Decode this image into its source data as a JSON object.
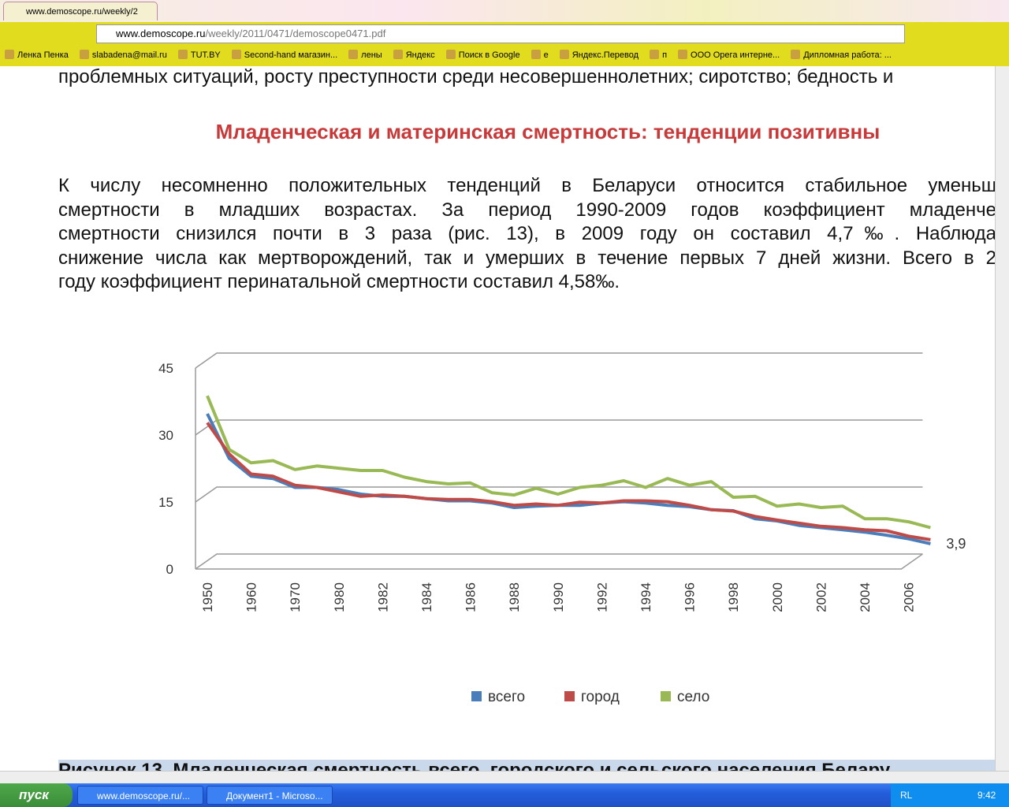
{
  "browser": {
    "tab_title": "www.demoscope.ru/weekly/2",
    "address_host": "www.demoscope.ru",
    "address_path": "/weekly/2011/0471/demoscope0471.pdf",
    "bookmarks": [
      "Ленка Пенка",
      "slabadena@mail.ru",
      "TUT.BY",
      "Second-hand магазин...",
      "лены",
      "Яндекс",
      "Поиск в Google",
      "е",
      "Яндекс.Перевод",
      "п",
      "ООО Орега интерне...",
      "Дипломная работа: ..."
    ]
  },
  "document": {
    "top_line": "проблемных ситуаций, росту преступности среди несовершеннолетних; сиротство; бедность и",
    "heading": "Младенческая и материнская смертность: тенденции позитивны",
    "paragraph": [
      "К числу несомненно положительных тенденций в Беларуси относится стабильное уменьш",
      "смертности в младших возрастах. За период 1990-2009 годов коэффициент младенче",
      "смертности снизился почти в 3 раза (рис. 13), в 2009 году он составил 4,7‰. Наблюда",
      "снижение числа как мертворождений, так и умерших в течение первых 7 дней жизни. Всего в 2",
      "году коэффициент перинатальной смертности составил 4,58‰."
    ],
    "caption": "Рисунок 13. Младенческая смертность всего, городского и сельского населения Белару"
  },
  "chart_data": {
    "type": "line",
    "categories": [
      "1950",
      null,
      "1960",
      null,
      "1970",
      null,
      "1980",
      null,
      "1982",
      null,
      "1984",
      null,
      "1986",
      null,
      "1988",
      null,
      "1990",
      null,
      "1992",
      null,
      "1994",
      null,
      "1996",
      null,
      "1998",
      null,
      "2000",
      null,
      "2002",
      null,
      "2004",
      null,
      "2006",
      null
    ],
    "series": [
      {
        "name": "всего",
        "color": "#4a7ebb",
        "values": [
          33,
          23,
          19,
          18.5,
          16.5,
          16.5,
          16,
          15,
          14.5,
          14.5,
          14,
          13.5,
          13.5,
          13,
          12,
          12.3,
          12.5,
          12.5,
          13,
          13.3,
          13,
          12.5,
          12.2,
          11.5,
          11.3,
          9.5,
          9,
          8,
          7.5,
          7,
          6.5,
          5.8,
          5,
          3.9
        ],
        "value_labels": [
          null,
          null,
          null,
          null,
          null,
          null,
          null,
          null,
          null,
          null,
          null,
          null,
          null,
          null,
          null,
          null,
          null,
          null,
          null,
          null,
          null,
          null,
          null,
          null,
          null,
          null,
          null,
          null,
          null,
          null,
          null,
          null,
          null,
          "3,9"
        ]
      },
      {
        "name": "город",
        "color": "#be4b48",
        "values": [
          31,
          24,
          19.5,
          19,
          17,
          16.5,
          15.5,
          14.5,
          14.8,
          14.5,
          14,
          13.8,
          13.8,
          13.3,
          12.5,
          12.8,
          12.5,
          13.2,
          13,
          13.5,
          13.5,
          13.3,
          12.5,
          11.5,
          11.2,
          10,
          9.2,
          8.5,
          7.8,
          7.5,
          7,
          6.8,
          5.6,
          4.8
        ]
      },
      {
        "name": "село",
        "color": "#98b954",
        "values": [
          37,
          25,
          22,
          22.5,
          20.5,
          21.3,
          20.8,
          20.3,
          20.3,
          18.8,
          17.8,
          17.3,
          17.5,
          15.3,
          14.8,
          16.3,
          15,
          16.5,
          17,
          18,
          16.5,
          18.5,
          17,
          17.8,
          14.3,
          14.5,
          12.3,
          12.8,
          12,
          12.3,
          9.5,
          9.5,
          8.8,
          7.5
        ]
      }
    ],
    "ylim": [
      0,
      45
    ],
    "yticks": [
      0,
      15,
      30,
      45
    ],
    "grid": true,
    "legend": "bottom"
  },
  "taskbar": {
    "start": "пуск",
    "items": [
      "www.demoscope.ru/...",
      "Документ1 - Microso..."
    ],
    "lang": "RL",
    "clock": "9:42"
  }
}
